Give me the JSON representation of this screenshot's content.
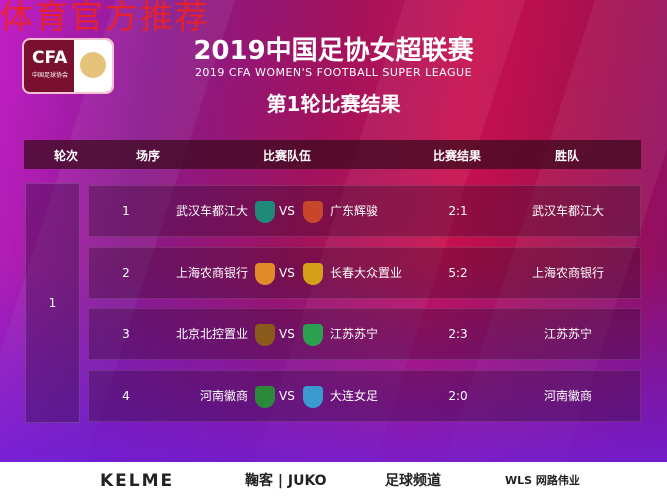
{
  "watermark": "体育官方推荐",
  "logo": {
    "text": "CFA",
    "subtext": "中国足球协会"
  },
  "header": {
    "title": "2019中国足协女超联赛",
    "subtitle": "2019 CFA WOMEN'S FOOTBALL SUPER LEAGUE",
    "round_title": "第1轮比赛结果"
  },
  "table": {
    "columns": [
      "轮次",
      "场序",
      "比赛队伍",
      "比赛结果",
      "胜队"
    ],
    "round": "1",
    "vs": "VS",
    "rows": [
      {
        "no": "1",
        "home": "武汉车都江大",
        "away": "广东辉骏",
        "score": "2:1",
        "winner": "武汉车都江大",
        "home_color": "#1e8a7a",
        "away_color": "#c8472a"
      },
      {
        "no": "2",
        "home": "上海农商银行",
        "away": "长春大众置业",
        "score": "5:2",
        "winner": "上海农商银行",
        "home_color": "#e08a2a",
        "away_color": "#d4a017"
      },
      {
        "no": "3",
        "home": "北京北控置业",
        "away": "江苏苏宁",
        "score": "2:3",
        "winner": "江苏苏宁",
        "home_color": "#8a5a1a",
        "away_color": "#2aa050"
      },
      {
        "no": "4",
        "home": "河南徽商",
        "away": "大连女足",
        "score": "2:0",
        "winner": "河南徽商",
        "home_color": "#2a8a3a",
        "away_color": "#3a9ad0"
      }
    ]
  },
  "sponsors": [
    "KELME",
    "鞠客 | JUKO",
    "足球频道",
    "WLS 网路伟业"
  ]
}
